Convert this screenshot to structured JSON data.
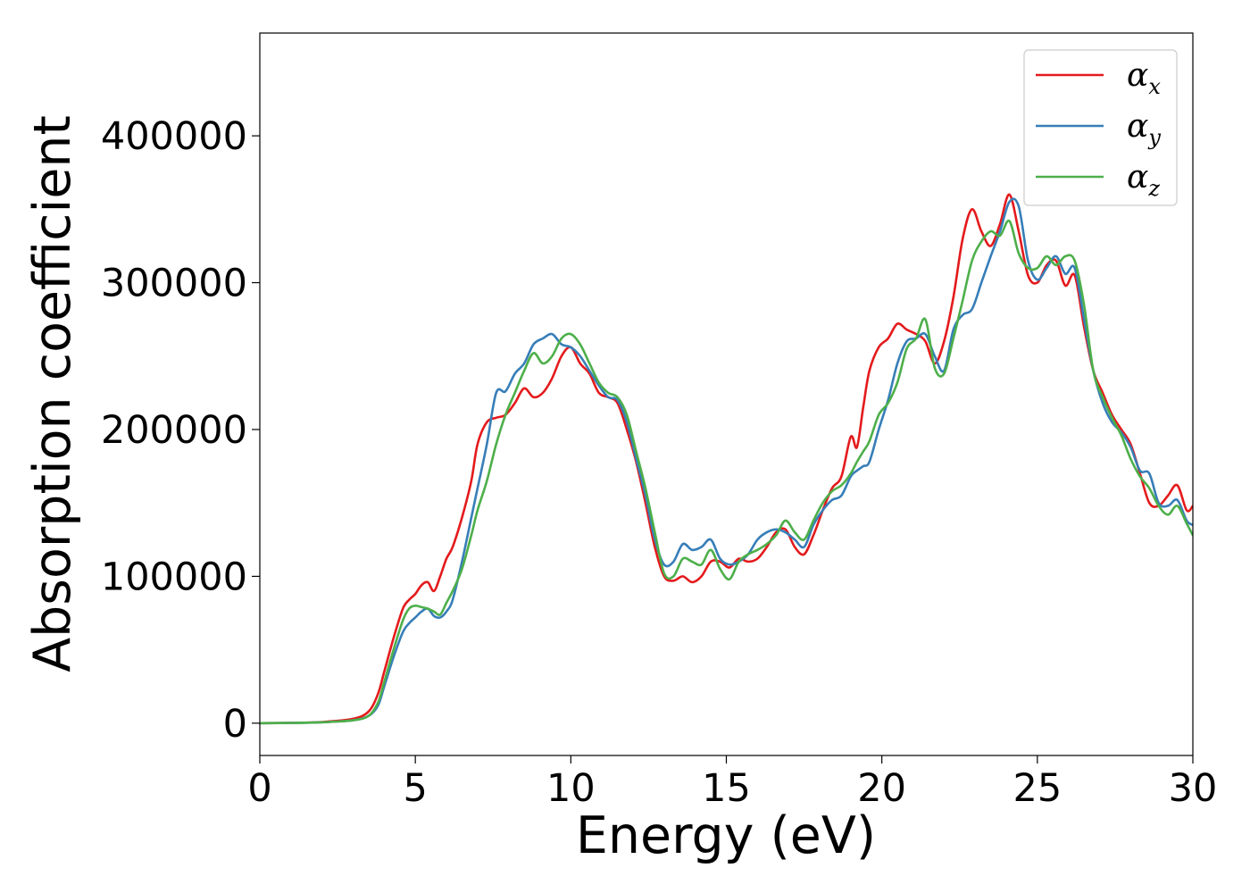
{
  "chart_data": {
    "type": "line",
    "title": "",
    "xlabel": "Energy (eV)",
    "ylabel": "Absorption coefficient",
    "xlim": [
      0,
      30
    ],
    "ylim": [
      -22000,
      470000
    ],
    "xticks": [
      0,
      5,
      10,
      15,
      20,
      25,
      30
    ],
    "xtick_labels": [
      "0",
      "5",
      "10",
      "15",
      "20",
      "25",
      "30"
    ],
    "yticks": [
      0,
      100000,
      200000,
      300000,
      400000
    ],
    "ytick_labels": [
      "0",
      "100000",
      "200000",
      "300000",
      "400000"
    ],
    "grid": false,
    "legend_position": "top-right",
    "series": [
      {
        "name": "α",
        "subscript": "x",
        "color": "#e41a1c",
        "x": [
          0,
          1,
          2,
          3,
          3.5,
          3.8,
          4.0,
          4.3,
          4.6,
          4.8,
          5.0,
          5.2,
          5.4,
          5.6,
          5.8,
          6.0,
          6.2,
          6.5,
          6.8,
          7.0,
          7.3,
          7.6,
          7.9,
          8.2,
          8.5,
          8.8,
          9.1,
          9.4,
          9.7,
          10.0,
          10.3,
          10.6,
          10.9,
          11.2,
          11.5,
          11.8,
          12.1,
          12.4,
          12.7,
          13.0,
          13.3,
          13.6,
          13.9,
          14.2,
          14.5,
          14.8,
          15.1,
          15.4,
          15.7,
          16.0,
          16.3,
          16.6,
          16.9,
          17.2,
          17.5,
          17.8,
          18.1,
          18.4,
          18.7,
          19.0,
          19.2,
          19.4,
          19.6,
          19.9,
          20.2,
          20.5,
          20.8,
          21.1,
          21.4,
          21.7,
          22.0,
          22.3,
          22.6,
          22.9,
          23.2,
          23.5,
          23.8,
          24.1,
          24.4,
          24.7,
          25.0,
          25.3,
          25.6,
          25.9,
          26.2,
          26.5,
          26.8,
          27.1,
          27.4,
          27.7,
          28.0,
          28.3,
          28.6,
          28.9,
          29.2,
          29.5,
          29.8,
          30
        ],
        "y": [
          0,
          200,
          800,
          3000,
          8000,
          20000,
          35000,
          58000,
          78000,
          84000,
          88000,
          94000,
          96000,
          90000,
          100000,
          112000,
          120000,
          140000,
          165000,
          190000,
          205000,
          208000,
          210000,
          218000,
          228000,
          222000,
          225000,
          235000,
          250000,
          256000,
          245000,
          238000,
          225000,
          222000,
          218000,
          200000,
          178000,
          150000,
          120000,
          100000,
          97000,
          100000,
          96000,
          100000,
          110000,
          110000,
          106000,
          112000,
          110000,
          112000,
          120000,
          130000,
          132000,
          120000,
          115000,
          128000,
          145000,
          160000,
          168000,
          195000,
          188000,
          215000,
          240000,
          256000,
          262000,
          272000,
          268000,
          265000,
          260000,
          245000,
          260000,
          290000,
          330000,
          350000,
          335000,
          325000,
          340000,
          360000,
          335000,
          305000,
          300000,
          312000,
          315000,
          298000,
          305000,
          270000,
          240000,
          225000,
          210000,
          200000,
          190000,
          170000,
          150000,
          148000,
          155000,
          162000,
          145000,
          148000
        ]
      },
      {
        "name": "α",
        "subscript": "y",
        "color": "#377eb8",
        "x": [
          0,
          1,
          2,
          3,
          3.5,
          3.8,
          4.0,
          4.3,
          4.6,
          4.8,
          5.0,
          5.2,
          5.4,
          5.6,
          5.8,
          6.0,
          6.2,
          6.5,
          6.8,
          7.0,
          7.3,
          7.6,
          7.9,
          8.2,
          8.5,
          8.8,
          9.1,
          9.4,
          9.7,
          10.0,
          10.3,
          10.6,
          10.9,
          11.2,
          11.5,
          11.8,
          12.1,
          12.4,
          12.7,
          13.0,
          13.3,
          13.6,
          13.9,
          14.2,
          14.5,
          14.8,
          15.1,
          15.4,
          15.7,
          16.0,
          16.3,
          16.6,
          16.9,
          17.2,
          17.5,
          17.8,
          18.1,
          18.4,
          18.7,
          19.0,
          19.2,
          19.4,
          19.6,
          19.9,
          20.2,
          20.5,
          20.8,
          21.1,
          21.4,
          21.7,
          22.0,
          22.3,
          22.6,
          22.9,
          23.2,
          23.5,
          23.8,
          24.1,
          24.4,
          24.7,
          25.0,
          25.3,
          25.6,
          25.9,
          26.2,
          26.5,
          26.8,
          27.1,
          27.4,
          27.7,
          28.0,
          28.3,
          28.6,
          28.9,
          29.2,
          29.5,
          29.8,
          30
        ],
        "y": [
          0,
          200,
          600,
          2000,
          5000,
          12000,
          25000,
          45000,
          62000,
          68000,
          72000,
          76000,
          78000,
          73000,
          72000,
          76000,
          84000,
          110000,
          140000,
          160000,
          190000,
          225000,
          226000,
          238000,
          245000,
          258000,
          262000,
          265000,
          258000,
          256000,
          250000,
          240000,
          230000,
          222000,
          220000,
          205000,
          180000,
          155000,
          125000,
          108000,
          110000,
          122000,
          118000,
          120000,
          125000,
          112000,
          108000,
          110000,
          115000,
          125000,
          130000,
          132000,
          130000,
          125000,
          120000,
          135000,
          145000,
          152000,
          155000,
          168000,
          172000,
          175000,
          178000,
          200000,
          220000,
          245000,
          260000,
          262000,
          265000,
          250000,
          240000,
          268000,
          278000,
          282000,
          300000,
          318000,
          335000,
          355000,
          352000,
          315000,
          302000,
          310000,
          318000,
          306000,
          310000,
          275000,
          240000,
          218000,
          205000,
          198000,
          188000,
          172000,
          170000,
          150000,
          148000,
          152000,
          138000,
          135000
        ]
      },
      {
        "name": "α",
        "subscript": "z",
        "color": "#4daf4a",
        "x": [
          0,
          1,
          2,
          3,
          3.5,
          3.8,
          4.0,
          4.3,
          4.6,
          4.8,
          5.0,
          5.2,
          5.4,
          5.6,
          5.8,
          6.0,
          6.2,
          6.5,
          6.8,
          7.0,
          7.3,
          7.6,
          7.9,
          8.2,
          8.5,
          8.8,
          9.1,
          9.4,
          9.7,
          10.0,
          10.3,
          10.6,
          10.9,
          11.2,
          11.5,
          11.8,
          12.1,
          12.4,
          12.7,
          13.0,
          13.3,
          13.6,
          13.9,
          14.2,
          14.5,
          14.8,
          15.1,
          15.4,
          15.7,
          16.0,
          16.3,
          16.6,
          16.9,
          17.2,
          17.5,
          17.8,
          18.1,
          18.4,
          18.7,
          19.0,
          19.2,
          19.4,
          19.6,
          19.9,
          20.2,
          20.5,
          20.8,
          21.1,
          21.4,
          21.7,
          22.0,
          22.3,
          22.6,
          22.9,
          23.2,
          23.5,
          23.8,
          24.1,
          24.4,
          24.7,
          25.0,
          25.3,
          25.6,
          25.9,
          26.2,
          26.5,
          26.8,
          27.1,
          27.4,
          27.7,
          28.0,
          28.3,
          28.6,
          28.9,
          29.2,
          29.5,
          29.8,
          30
        ],
        "y": [
          0,
          200,
          600,
          2000,
          5000,
          14000,
          28000,
          50000,
          70000,
          78000,
          80000,
          79000,
          78000,
          76000,
          74000,
          82000,
          90000,
          105000,
          128000,
          145000,
          165000,
          190000,
          210000,
          225000,
          240000,
          252000,
          245000,
          250000,
          262000,
          265000,
          258000,
          245000,
          232000,
          225000,
          222000,
          210000,
          185000,
          160000,
          130000,
          102000,
          100000,
          112000,
          110000,
          108000,
          118000,
          105000,
          98000,
          110000,
          115000,
          118000,
          122000,
          128000,
          138000,
          130000,
          125000,
          138000,
          150000,
          158000,
          162000,
          170000,
          178000,
          185000,
          192000,
          210000,
          218000,
          232000,
          255000,
          262000,
          275000,
          242000,
          238000,
          262000,
          288000,
          315000,
          328000,
          335000,
          332000,
          342000,
          320000,
          310000,
          310000,
          318000,
          312000,
          318000,
          315000,
          285000,
          240000,
          222000,
          208000,
          196000,
          180000,
          168000,
          160000,
          148000,
          142000,
          148000,
          136000,
          128000
        ]
      }
    ]
  }
}
